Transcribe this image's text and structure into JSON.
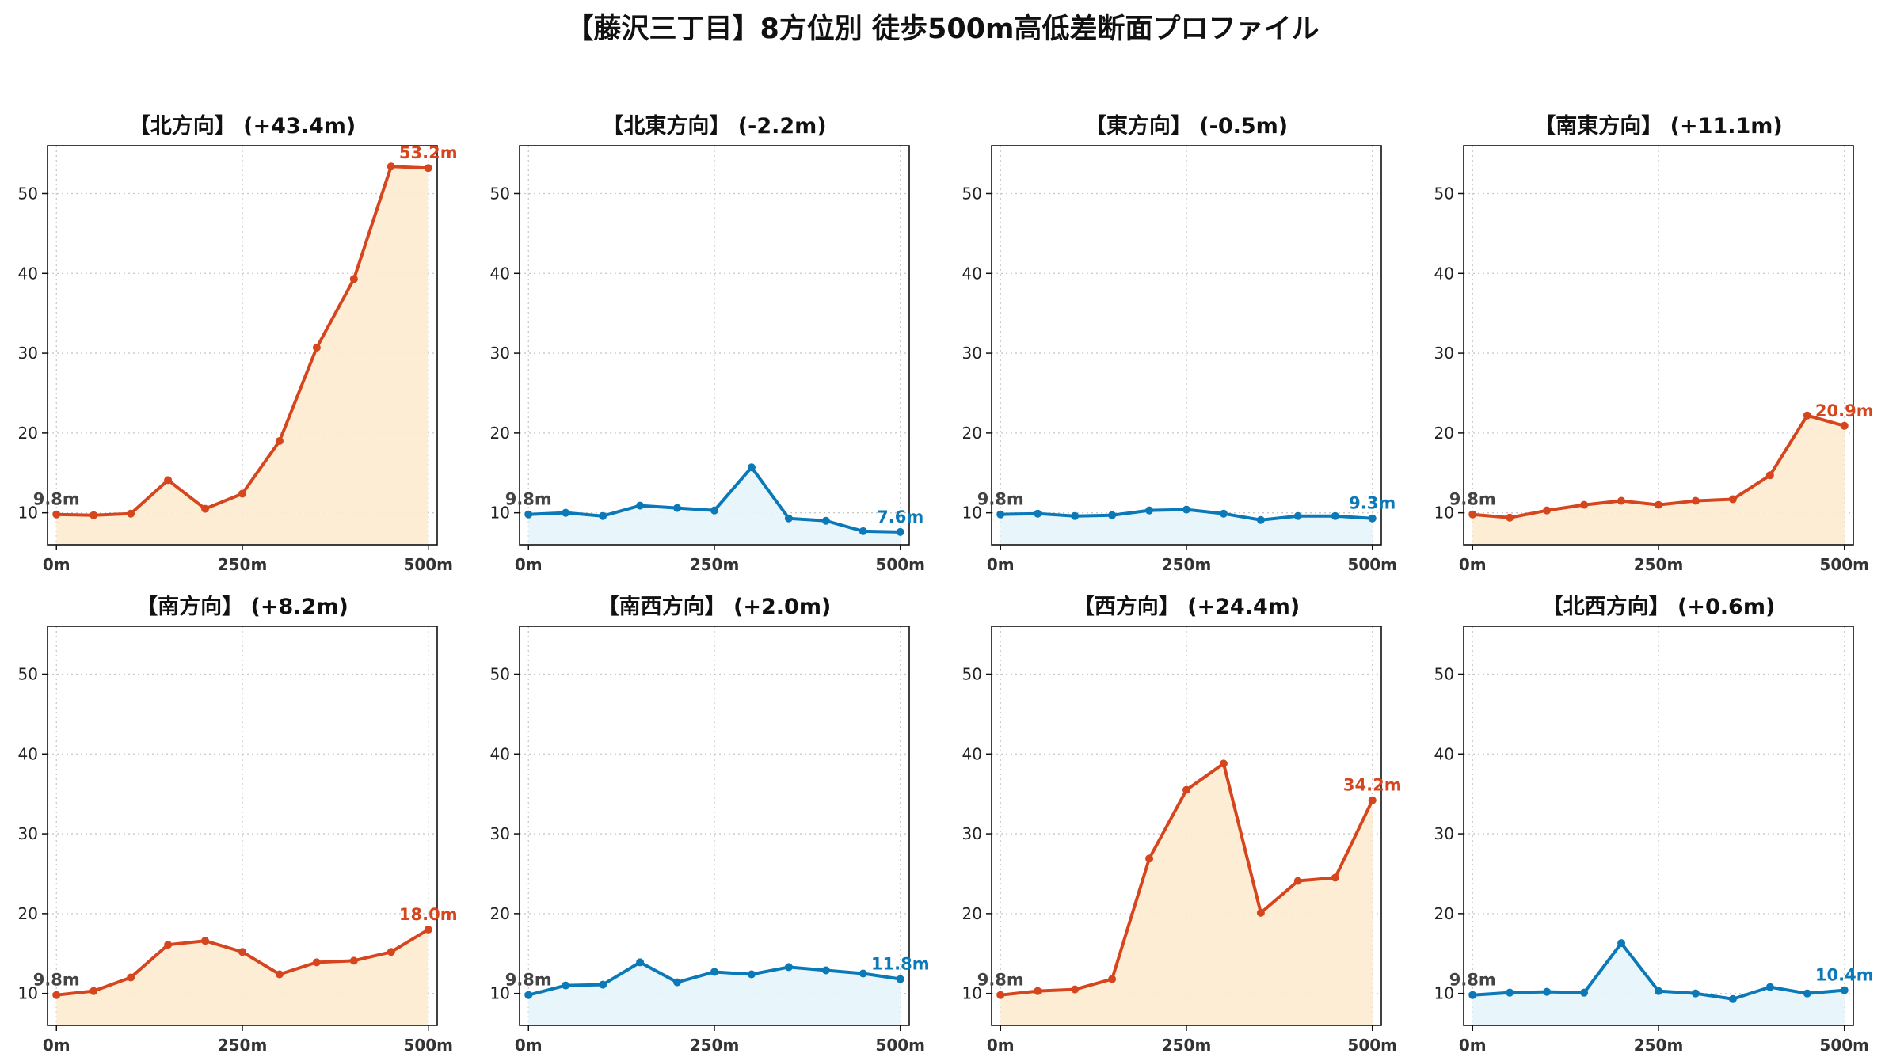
{
  "title": "【藤沢三丁目】8方位別 徒歩500m高低差断面プロファイル",
  "colors": {
    "up_line": "#d6461e",
    "up_fill": "#fdebd0",
    "down_line": "#0b79b8",
    "down_fill": "#e6f5fb",
    "start_label": "#444444",
    "grid": "#c8c8c8"
  },
  "chart_data": [
    {
      "type": "area",
      "title": "【北方向】 (+43.4m)",
      "trend": "up",
      "x": [
        0,
        50,
        100,
        150,
        200,
        250,
        300,
        350,
        400,
        450,
        500
      ],
      "values": [
        9.8,
        9.7,
        9.9,
        14.1,
        10.5,
        12.4,
        19.0,
        30.7,
        39.3,
        53.4,
        53.2
      ],
      "start_label": "9.8m",
      "end_label": "53.2m",
      "xticks": [
        "0m",
        "250m",
        "500m"
      ],
      "yticks": [
        10,
        20,
        30,
        40,
        50
      ],
      "ylim": [
        6,
        56
      ],
      "xlim": [
        -12,
        512
      ],
      "grid": true
    },
    {
      "type": "area",
      "title": "【北東方向】 (-2.2m)",
      "trend": "down",
      "x": [
        0,
        50,
        100,
        150,
        200,
        250,
        300,
        350,
        400,
        450,
        500
      ],
      "values": [
        9.8,
        10.0,
        9.6,
        10.9,
        10.6,
        10.3,
        15.7,
        9.3,
        9.0,
        7.7,
        7.6
      ],
      "start_label": "9.8m",
      "end_label": "7.6m",
      "xticks": [
        "0m",
        "250m",
        "500m"
      ],
      "yticks": [
        10,
        20,
        30,
        40,
        50
      ],
      "ylim": [
        6,
        56
      ],
      "xlim": [
        -12,
        512
      ],
      "grid": true
    },
    {
      "type": "area",
      "title": "【東方向】 (-0.5m)",
      "trend": "down",
      "x": [
        0,
        50,
        100,
        150,
        200,
        250,
        300,
        350,
        400,
        450,
        500
      ],
      "values": [
        9.8,
        9.9,
        9.6,
        9.7,
        10.3,
        10.4,
        9.9,
        9.1,
        9.6,
        9.6,
        9.3
      ],
      "start_label": "9.8m",
      "end_label": "9.3m",
      "xticks": [
        "0m",
        "250m",
        "500m"
      ],
      "yticks": [
        10,
        20,
        30,
        40,
        50
      ],
      "ylim": [
        6,
        56
      ],
      "xlim": [
        -12,
        512
      ],
      "grid": true
    },
    {
      "type": "area",
      "title": "【南東方向】 (+11.1m)",
      "trend": "up",
      "x": [
        0,
        50,
        100,
        150,
        200,
        250,
        300,
        350,
        400,
        450,
        500
      ],
      "values": [
        9.8,
        9.4,
        10.3,
        11.0,
        11.5,
        11.0,
        11.5,
        11.7,
        14.7,
        22.2,
        20.9
      ],
      "start_label": "9.8m",
      "end_label": "20.9m",
      "xticks": [
        "0m",
        "250m",
        "500m"
      ],
      "yticks": [
        10,
        20,
        30,
        40,
        50
      ],
      "ylim": [
        6,
        56
      ],
      "xlim": [
        -12,
        512
      ],
      "grid": true
    },
    {
      "type": "area",
      "title": "【南方向】 (+8.2m)",
      "trend": "up",
      "x": [
        0,
        50,
        100,
        150,
        200,
        250,
        300,
        350,
        400,
        450,
        500
      ],
      "values": [
        9.8,
        10.3,
        12.0,
        16.1,
        16.6,
        15.2,
        12.4,
        13.9,
        14.1,
        15.2,
        18.0
      ],
      "start_label": "9.8m",
      "end_label": "18.0m",
      "xticks": [
        "0m",
        "250m",
        "500m"
      ],
      "yticks": [
        10,
        20,
        30,
        40,
        50
      ],
      "ylim": [
        6,
        56
      ],
      "xlim": [
        -12,
        512
      ],
      "grid": true
    },
    {
      "type": "area",
      "title": "【南西方向】 (+2.0m)",
      "trend": "down",
      "x": [
        0,
        50,
        100,
        150,
        200,
        250,
        300,
        350,
        400,
        450,
        500
      ],
      "values": [
        9.8,
        11.0,
        11.1,
        13.9,
        11.4,
        12.7,
        12.4,
        13.3,
        12.9,
        12.5,
        11.8
      ],
      "start_label": "9.8m",
      "end_label": "11.8m",
      "xticks": [
        "0m",
        "250m",
        "500m"
      ],
      "yticks": [
        10,
        20,
        30,
        40,
        50
      ],
      "ylim": [
        6,
        56
      ],
      "xlim": [
        -12,
        512
      ],
      "grid": true
    },
    {
      "type": "area",
      "title": "【西方向】 (+24.4m)",
      "trend": "up",
      "x": [
        0,
        50,
        100,
        150,
        200,
        250,
        300,
        350,
        400,
        450,
        500
      ],
      "values": [
        9.8,
        10.3,
        10.5,
        11.8,
        26.9,
        35.5,
        38.8,
        20.1,
        24.1,
        24.5,
        34.2
      ],
      "start_label": "9.8m",
      "end_label": "34.2m",
      "xticks": [
        "0m",
        "250m",
        "500m"
      ],
      "yticks": [
        10,
        20,
        30,
        40,
        50
      ],
      "ylim": [
        6,
        56
      ],
      "xlim": [
        -12,
        512
      ],
      "grid": true
    },
    {
      "type": "area",
      "title": "【北西方向】 (+0.6m)",
      "trend": "down",
      "x": [
        0,
        50,
        100,
        150,
        200,
        250,
        300,
        350,
        400,
        450,
        500
      ],
      "values": [
        9.8,
        10.1,
        10.2,
        10.1,
        16.3,
        10.3,
        10.0,
        9.3,
        10.8,
        10.0,
        10.4
      ],
      "start_label": "9.8m",
      "end_label": "10.4m",
      "xticks": [
        "0m",
        "250m",
        "500m"
      ],
      "yticks": [
        10,
        20,
        30,
        40,
        50
      ],
      "ylim": [
        6,
        56
      ],
      "xlim": [
        -12,
        512
      ],
      "grid": true
    }
  ]
}
